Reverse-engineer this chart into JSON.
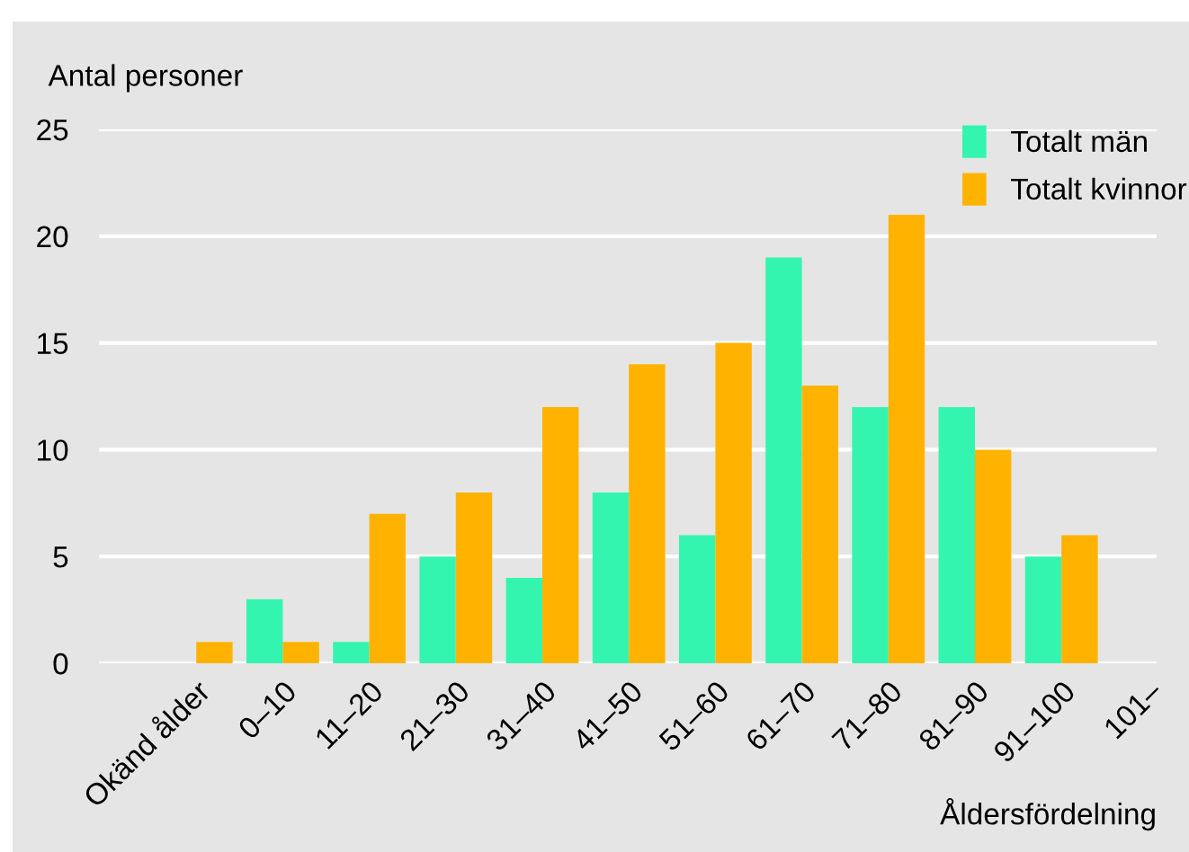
{
  "chart_data": {
    "type": "bar",
    "ylabel": "Antal personer",
    "xlabel": "Åldersfördelning",
    "categories": [
      "Okänd ålder",
      "0–10",
      "11–20",
      "21–30",
      "31–40",
      "41–50",
      "51–60",
      "61–70",
      "71–80",
      "81–90",
      "91–100",
      "101–"
    ],
    "series": [
      {
        "name": "Totalt män",
        "color": "#33f5b0",
        "values": [
          0,
          3,
          1,
          5,
          4,
          8,
          6,
          19,
          12,
          12,
          5,
          0
        ]
      },
      {
        "name": "Totalt kvinnor",
        "color": "#ffb300",
        "values": [
          1,
          1,
          7,
          8,
          12,
          14,
          15,
          13,
          21,
          10,
          6,
          0
        ]
      }
    ],
    "ylim": [
      0,
      25
    ],
    "yticks": [
      0,
      5,
      10,
      15,
      20,
      25
    ],
    "grid": "y",
    "legend": "top right"
  }
}
